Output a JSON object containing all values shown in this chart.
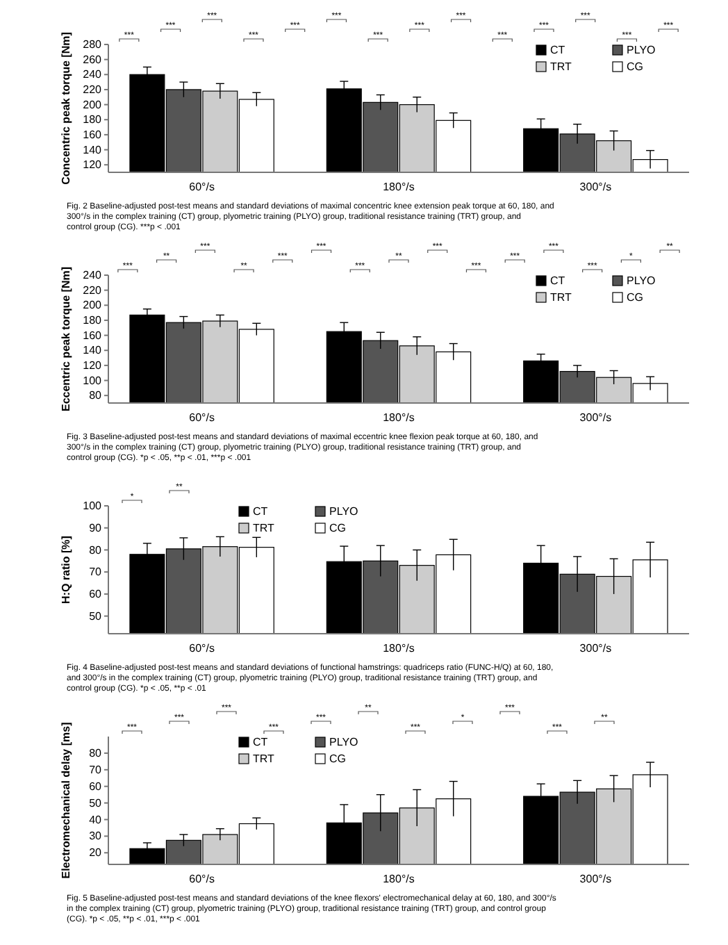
{
  "chart_data": [
    {
      "type": "bar",
      "ylabel": "Concentric peak torque [Nm]",
      "categories": [
        "60°/s",
        "180°/s",
        "300°/s"
      ],
      "ylim": [
        110,
        280
      ],
      "yticks": [
        120,
        140,
        160,
        180,
        200,
        220,
        240,
        260,
        280
      ],
      "legend": "top right",
      "grid": false,
      "series": [
        {
          "name": "CT",
          "color": "#000000",
          "values": [
            240,
            221,
            168
          ],
          "errors": [
            10,
            10,
            13
          ]
        },
        {
          "name": "PLYO",
          "color": "#555555",
          "values": [
            220,
            203,
            161
          ],
          "errors": [
            10,
            10,
            13
          ]
        },
        {
          "name": "TRT",
          "color": "#cccccc",
          "values": [
            218,
            200,
            152
          ],
          "errors": [
            10,
            10,
            13
          ]
        },
        {
          "name": "CG",
          "color": "#ffffff",
          "values": [
            207,
            179,
            127
          ],
          "errors": [
            9,
            10,
            12
          ]
        }
      ],
      "annotations": [
        "***",
        "***",
        "***",
        "***",
        "***",
        "***",
        "***",
        "***",
        "***",
        "***",
        "***",
        "***",
        "***",
        "***",
        "Fig. 2 Baseline-adjusted post-test means and standard deviations of maximal concentric knee extension peak torque at 60, 180, and 300°/s in the complex training (CT) group, plyometric training (PLYO) group, traditional resistance training (TRT) group, and control group (CG). ***p < .001"
      ]
    },
    {
      "type": "bar",
      "ylabel": "Eccentric peak torque [Nm]",
      "categories": [
        "60°/s",
        "180°/s",
        "300°/s"
      ],
      "ylim": [
        70,
        240
      ],
      "yticks": [
        80,
        100,
        120,
        140,
        160,
        180,
        200,
        220,
        240
      ],
      "legend": "top right",
      "grid": false,
      "series": [
        {
          "name": "CT",
          "color": "#000000",
          "values": [
            187,
            165,
            126
          ],
          "errors": [
            8,
            12,
            9
          ]
        },
        {
          "name": "PLYO",
          "color": "#555555",
          "values": [
            177,
            153,
            112
          ],
          "errors": [
            8,
            11,
            8
          ]
        },
        {
          "name": "TRT",
          "color": "#cccccc",
          "values": [
            179,
            146,
            104
          ],
          "errors": [
            8,
            12,
            9
          ]
        },
        {
          "name": "CG",
          "color": "#ffffff",
          "values": [
            168,
            138,
            96
          ],
          "errors": [
            8,
            11,
            9
          ]
        }
      ],
      "annotations": [
        "***",
        "**",
        "***",
        "**",
        "***",
        "***",
        "***",
        "**",
        "***",
        "***",
        "***",
        "***",
        "***",
        "*",
        "**",
        "Fig. 3 Baseline-adjusted post-test means and standard deviations of maximal eccentric knee flexion peak torque at 60, 180, and 300°/s in the complex training (CT) group, plyometric training (PLYO) group, traditional resistance training (TRT) group, and control group (CG). *p < .05, **p < .01, ***p < .001"
      ]
    },
    {
      "type": "bar",
      "ylabel": "H:Q ratio [%]",
      "categories": [
        "60°/s",
        "180°/s",
        "300°/s"
      ],
      "ylim": [
        42,
        100
      ],
      "yticks": [
        50,
        60,
        70,
        80,
        90,
        100
      ],
      "legend": "top",
      "grid": false,
      "series": [
        {
          "name": "CT",
          "color": "#000000",
          "values": [
            78,
            74.7,
            74
          ],
          "errors": [
            5,
            7,
            8
          ]
        },
        {
          "name": "PLYO",
          "color": "#555555",
          "values": [
            80.5,
            75,
            69
          ],
          "errors": [
            5,
            7,
            8
          ]
        },
        {
          "name": "TRT",
          "color": "#cccccc",
          "values": [
            81.5,
            73,
            68
          ],
          "errors": [
            4.5,
            7,
            8
          ]
        },
        {
          "name": "CG",
          "color": "#ffffff",
          "values": [
            81.2,
            77.8,
            75.5
          ],
          "errors": [
            4.5,
            7,
            8
          ]
        }
      ],
      "annotations": [
        "*",
        "**",
        "Fig. 4 Baseline-adjusted post-test means and standard deviations of functional hamstrings: quadriceps ratio (FUNC-H/Q) at 60, 180, and 300°/s in the complex training (CT) group, plyometric training (PLYO) group, traditional resistance training (TRT) group, and control group (CG). *p < .05, **p < .01"
      ]
    },
    {
      "type": "bar",
      "ylabel": "Electromechanical delay [ms]",
      "categories": [
        "60°/s",
        "180°/s",
        "300°/s"
      ],
      "ylim": [
        13,
        90
      ],
      "yticks": [
        20,
        30,
        40,
        50,
        60,
        70,
        80
      ],
      "legend": "top",
      "grid": false,
      "series": [
        {
          "name": "CT",
          "color": "#000000",
          "values": [
            22.5,
            38,
            54
          ],
          "errors": [
            3.5,
            11,
            7.5
          ]
        },
        {
          "name": "PLYO",
          "color": "#555555",
          "values": [
            27.5,
            44,
            56.5
          ],
          "errors": [
            3.5,
            11,
            7
          ]
        },
        {
          "name": "TRT",
          "color": "#cccccc",
          "values": [
            31,
            47,
            58.5
          ],
          "errors": [
            3.5,
            11,
            8
          ]
        },
        {
          "name": "CG",
          "color": "#ffffff",
          "values": [
            37.5,
            52.5,
            67
          ],
          "errors": [
            3.5,
            10.5,
            7.5
          ]
        }
      ],
      "annotations": [
        "***",
        "***",
        "***",
        "***",
        "***",
        "**",
        "***",
        "*",
        "***",
        "***",
        "**",
        "Fig. 5 Baseline-adjusted post-test means and standard deviations of the knee flexors' electromechanical delay at 60, 180, and 300°/s in the complex training (CT) group, plyometric training (PLYO) group, traditional resistance training (TRT) group, and control group (CG). *p < .05, **p < .01, ***p < .001"
      ]
    }
  ]
}
